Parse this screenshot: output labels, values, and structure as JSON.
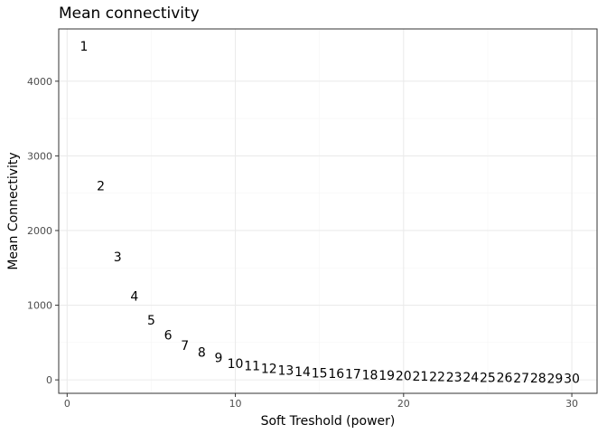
{
  "chart_data": {
    "type": "scatter",
    "title": "Mean connectivity",
    "xlabel": "Soft Treshold (power)",
    "ylabel": "Mean Connectivity",
    "xlim": [
      -0.5,
      31.5
    ],
    "ylim": [
      -180,
      4700
    ],
    "grid": true,
    "x_ticks": [
      0,
      10,
      20,
      30
    ],
    "y_ticks": [
      0,
      1000,
      2000,
      3000,
      4000
    ],
    "x_tick_labels": [
      "0",
      "10",
      "20",
      "30"
    ],
    "y_tick_labels": [
      "0",
      "1000",
      "2000",
      "3000",
      "4000"
    ],
    "point_labels": [
      "1",
      "2",
      "3",
      "4",
      "5",
      "6",
      "7",
      "8",
      "9",
      "10",
      "11",
      "12",
      "13",
      "14",
      "15",
      "16",
      "17",
      "18",
      "19",
      "20",
      "21",
      "22",
      "23",
      "24",
      "25",
      "26",
      "27",
      "28",
      "29",
      "30"
    ],
    "x": [
      1,
      2,
      3,
      4,
      5,
      6,
      7,
      8,
      9,
      10,
      11,
      12,
      13,
      14,
      15,
      16,
      17,
      18,
      19,
      20,
      21,
      22,
      23,
      24,
      25,
      26,
      27,
      28,
      29,
      30
    ],
    "y": [
      4470,
      2600,
      1650,
      1120,
      800,
      600,
      460,
      370,
      300,
      220,
      190,
      150,
      130,
      110,
      95,
      85,
      78,
      70,
      60,
      55,
      50,
      45,
      40,
      35,
      32,
      30,
      28,
      25,
      22,
      20
    ]
  },
  "colors": {
    "panel_border": "#333333",
    "grid_major": "#ebebeb",
    "grid_minor": "#f5f5f5",
    "text": "#000000",
    "tick_text": "#4d4d4d"
  }
}
